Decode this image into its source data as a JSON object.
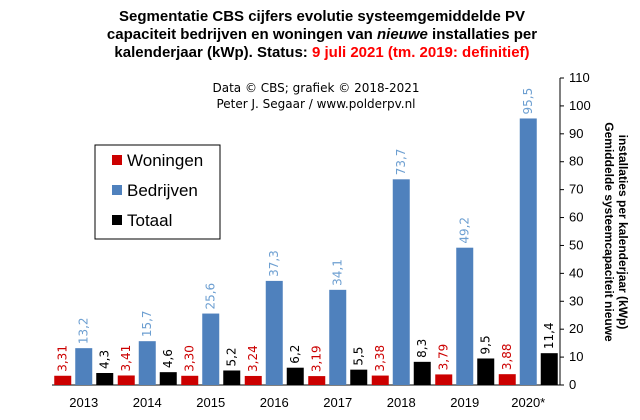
{
  "chart_data": {
    "type": "bar",
    "title_lines": [
      "Segmentatie CBS cijfers evolutie systeemgemiddelde PV",
      "capaciteit bedrijven en woningen van ",
      "kalenderjaar (kWp). Status: "
    ],
    "title_parts": {
      "nieuwe": "nieuwe",
      "line2_tail": " installaties per",
      "status_value": "9 juli 2021 (tm. 2019: definitief)"
    },
    "credits": [
      "Data © CBS; grafiek © 2018-2021",
      "Peter J. Segaar / www.polderpv.nl"
    ],
    "ylabel_lines": [
      "Gemiddelde systeemcapaciteit nieuwe",
      "installaties per kalenderjaar (kWp)"
    ],
    "ylim": [
      0,
      110
    ],
    "yticks": [
      0,
      10,
      20,
      30,
      40,
      50,
      60,
      70,
      80,
      90,
      100,
      110
    ],
    "categories": [
      "2013",
      "2014",
      "2015",
      "2016",
      "2017",
      "2018",
      "2019",
      "2020*"
    ],
    "series": [
      {
        "name": "Woningen",
        "color": "#cc0000",
        "label_color": "#cc0000",
        "values": [
          3.31,
          3.41,
          3.3,
          3.24,
          3.19,
          3.38,
          3.79,
          3.88
        ],
        "labels": [
          "3,31",
          "3,41",
          "3,30",
          "3,24",
          "3,19",
          "3,38",
          "3,79",
          "3,88"
        ]
      },
      {
        "name": "Bedrijven",
        "color": "#4f81bd",
        "label_color": "#6d9fd1",
        "values": [
          13.2,
          15.7,
          25.6,
          37.3,
          34.1,
          73.7,
          49.2,
          95.5
        ],
        "labels": [
          "13,2",
          "15,7",
          "25,6",
          "37,3",
          "34,1",
          "73,7",
          "49,2",
          "95,5"
        ]
      },
      {
        "name": "Totaal",
        "color": "#000000",
        "label_color": "#000000",
        "values": [
          4.3,
          4.6,
          5.2,
          6.2,
          5.5,
          8.3,
          9.5,
          11.4
        ],
        "labels": [
          "4,3",
          "4,6",
          "5,2",
          "6,2",
          "5,5",
          "8,3",
          "9,5",
          "11,4"
        ]
      }
    ],
    "legend": {
      "placement": "top-left"
    },
    "grid": false
  }
}
